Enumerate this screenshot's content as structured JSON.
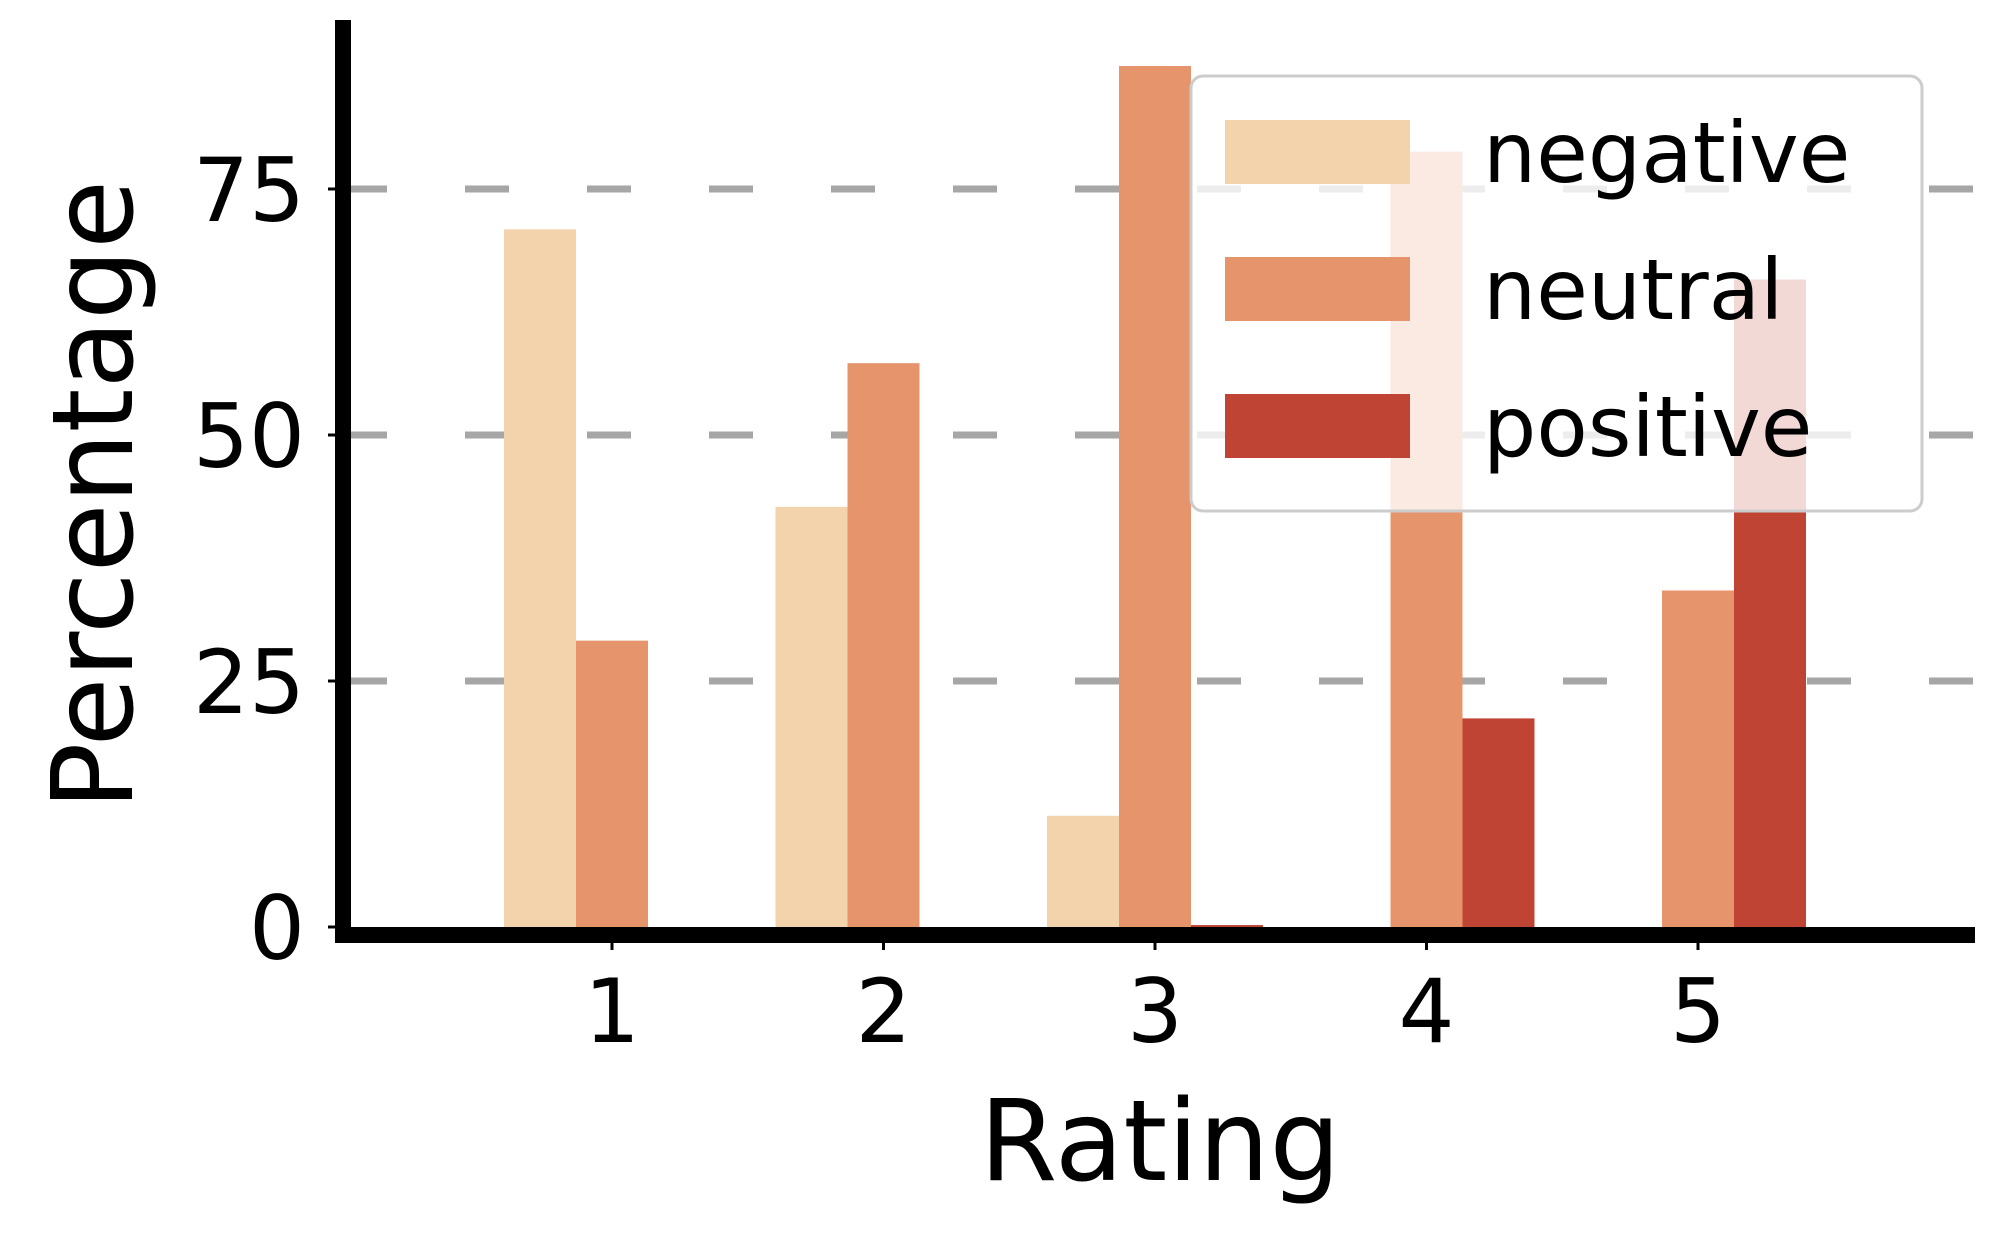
{
  "chart_data": {
    "type": "bar",
    "categories": [
      "1",
      "2",
      "3",
      "4",
      "5"
    ],
    "xlabel": "Rating",
    "ylabel": "Percentage",
    "ylim": [
      0,
      93
    ],
    "yticks": [
      0,
      25,
      50,
      75
    ],
    "grid": "horizontal dashed at y ticks",
    "legend_position": "top-right",
    "series": [
      {
        "name": "negative",
        "color": "#f2d3ab",
        "values": [
          70.9,
          42.7,
          11.3,
          0,
          0
        ]
      },
      {
        "name": "neutral",
        "color": "#e6946b",
        "values": [
          29.1,
          57.3,
          87.5,
          78.8,
          34.2
        ]
      },
      {
        "name": "positive",
        "color": "#c04434",
        "values": [
          0,
          0,
          0.2,
          21.2,
          65.8
        ]
      }
    ]
  }
}
